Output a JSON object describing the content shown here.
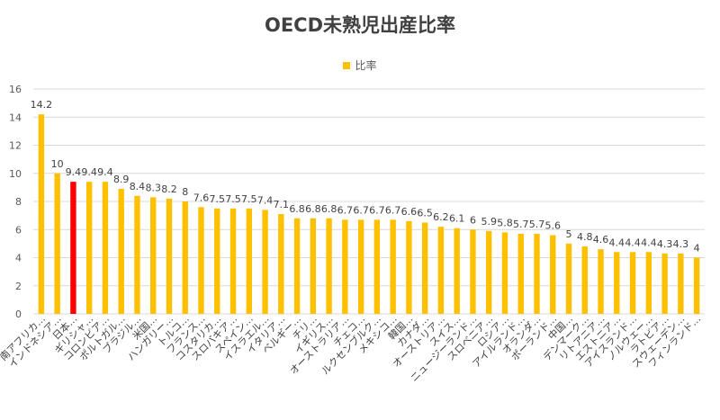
{
  "chart_data": {
    "type": "bar",
    "title": "OECD未熟児出産比率",
    "legend": {
      "label": "比率",
      "position": "top"
    },
    "ylim": [
      0,
      16
    ],
    "yticks": [
      0,
      2,
      4,
      6,
      8,
      10,
      12,
      14,
      16
    ],
    "grid": true,
    "colors": {
      "default": "#FFC000",
      "highlight": "#FF0000"
    },
    "highlight_index": 2,
    "categories": [
      "南アフリカ",
      "インドネシア",
      "日本",
      "ギリシャ",
      "コロンビア",
      "ポルトガル",
      "ブラジル",
      "米国",
      "ハンガリー",
      "トルコ",
      "フランス",
      "コスタリカ",
      "スロバキア",
      "スペイン",
      "イスラエル",
      "イタリア",
      "ベルギー",
      "チリ",
      "イギリス",
      "オーストラリア",
      "チェコ",
      "ルクセンブルク",
      "メキシコ",
      "韓国",
      "カナダ",
      "オーストリア",
      "スイス",
      "ニュージーランド",
      "スロベニア",
      "ロシア",
      "アイルランド",
      "オランダ",
      "ポーランド",
      "中国",
      "デンマーク",
      "リトアニア",
      "エストニア",
      "アイスランド",
      "ノルウェー",
      "ラトビア",
      "スウェーデン",
      "フィンランド"
    ],
    "display_labels": [
      "南アフリカ…",
      "インドネシア…",
      "日本…",
      "ギリシャ…",
      "コロンビア…",
      "ポルトガル…",
      "ブラジル…",
      "米国…",
      "ハンガリー…",
      "トルコ…",
      "フランス…",
      "コスタリカ…",
      "スロバキア…",
      "スペイン…",
      "イスラエル…",
      "イタリア…",
      "ベルギー…",
      "チリ…",
      "イギリス…",
      "オーストラリア…",
      "チェコ…",
      "ルクセンブルク…",
      "メキシコ…",
      "韓国…",
      "カナダ…",
      "オーストリア…",
      "スイス…",
      "ニュージーランド…",
      "スロベニア…",
      "ロシア…",
      "アイルランド…",
      "オランダ…",
      "ポーランド…",
      "中国…",
      "デンマーク…",
      "リトアニア…",
      "エストニア…",
      "アイスランド…",
      "ノルウェー…",
      "ラトビア…",
      "スウェーデン…",
      "フィンランド…"
    ],
    "values": [
      14.2,
      10,
      9.4,
      9.4,
      9.4,
      8.9,
      8.4,
      8.3,
      8.2,
      8,
      7.6,
      7.5,
      7.5,
      7.5,
      7.4,
      7.1,
      6.8,
      6.8,
      6.8,
      6.7,
      6.7,
      6.7,
      6.7,
      6.6,
      6.5,
      6.2,
      6.1,
      6,
      5.9,
      5.8,
      5.7,
      5.7,
      5.6,
      5,
      4.8,
      4.6,
      4.4,
      4.4,
      4.4,
      4.3,
      4.3,
      4
    ]
  }
}
